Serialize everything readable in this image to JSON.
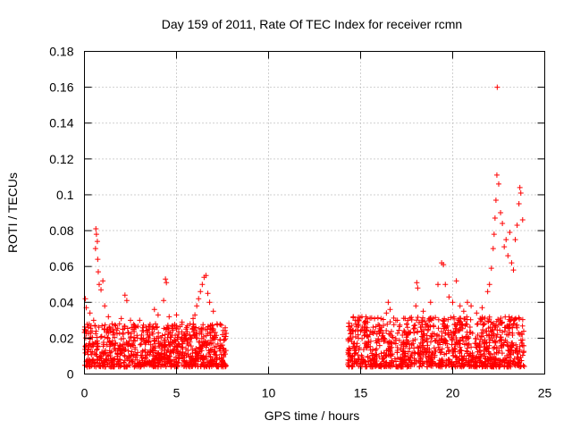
{
  "chart_data": {
    "type": "scatter",
    "title": "Day 159 of 2011, Rate Of TEC Index for receiver rcmn",
    "xlabel": "GPS time / hours",
    "ylabel": "ROTI / TECUs",
    "xlim": [
      0,
      25
    ],
    "ylim": [
      0,
      0.18
    ],
    "xticks": [
      "0",
      "5",
      "10",
      "15",
      "20",
      "25"
    ],
    "yticks": [
      "0",
      "0.02",
      "0.04",
      "0.06",
      "0.08",
      "0.1",
      "0.12",
      "0.14",
      "0.16",
      "0.18"
    ],
    "grid": true,
    "marker": "plus",
    "color": "#ff0000",
    "series": [
      {
        "points": [
          [
            0.05,
            0.042
          ],
          [
            0.1,
            0.037
          ],
          [
            0.2,
            0.026
          ],
          [
            0.3,
            0.034
          ],
          [
            0.5,
            0.03
          ],
          [
            0.6,
            0.07
          ],
          [
            0.62,
            0.081
          ],
          [
            0.65,
            0.078
          ],
          [
            0.7,
            0.074
          ],
          [
            0.72,
            0.064
          ],
          [
            0.75,
            0.057
          ],
          [
            0.8,
            0.05
          ],
          [
            0.9,
            0.047
          ],
          [
            1.0,
            0.052
          ],
          [
            1.1,
            0.038
          ],
          [
            1.3,
            0.032
          ],
          [
            1.5,
            0.028
          ],
          [
            1.7,
            0.027
          ],
          [
            2.0,
            0.031
          ],
          [
            2.2,
            0.044
          ],
          [
            2.3,
            0.041
          ],
          [
            2.5,
            0.03
          ],
          [
            2.8,
            0.026
          ],
          [
            3.0,
            0.03
          ],
          [
            3.2,
            0.024
          ],
          [
            3.5,
            0.025
          ],
          [
            3.8,
            0.036
          ],
          [
            4.0,
            0.033
          ],
          [
            4.3,
            0.041
          ],
          [
            4.4,
            0.053
          ],
          [
            4.45,
            0.051
          ],
          [
            4.6,
            0.032
          ],
          [
            5.0,
            0.033
          ],
          [
            5.3,
            0.029
          ],
          [
            5.6,
            0.027
          ],
          [
            5.9,
            0.031
          ],
          [
            6.0,
            0.033
          ],
          [
            6.1,
            0.038
          ],
          [
            6.2,
            0.042
          ],
          [
            6.3,
            0.046
          ],
          [
            6.4,
            0.05
          ],
          [
            6.5,
            0.054
          ],
          [
            6.6,
            0.055
          ],
          [
            6.7,
            0.045
          ],
          [
            6.8,
            0.04
          ],
          [
            7.0,
            0.035
          ],
          [
            7.2,
            0.028
          ],
          [
            7.5,
            0.022
          ],
          [
            14.4,
            0.02
          ],
          [
            14.6,
            0.032
          ],
          [
            14.7,
            0.03
          ],
          [
            15.0,
            0.024
          ],
          [
            15.5,
            0.022
          ],
          [
            16.0,
            0.024
          ],
          [
            16.4,
            0.034
          ],
          [
            16.5,
            0.04
          ],
          [
            16.6,
            0.036
          ],
          [
            17.0,
            0.03
          ],
          [
            17.5,
            0.028
          ],
          [
            18.0,
            0.038
          ],
          [
            18.05,
            0.051
          ],
          [
            18.1,
            0.048
          ],
          [
            18.4,
            0.035
          ],
          [
            18.8,
            0.04
          ],
          [
            19.2,
            0.05
          ],
          [
            19.4,
            0.062
          ],
          [
            19.5,
            0.061
          ],
          [
            19.6,
            0.05
          ],
          [
            19.8,
            0.043
          ],
          [
            20.0,
            0.04
          ],
          [
            20.2,
            0.052
          ],
          [
            20.4,
            0.038
          ],
          [
            20.6,
            0.035
          ],
          [
            20.8,
            0.04
          ],
          [
            21.0,
            0.038
          ],
          [
            21.3,
            0.034
          ],
          [
            21.6,
            0.037
          ],
          [
            21.9,
            0.046
          ],
          [
            22.0,
            0.05
          ],
          [
            22.1,
            0.059
          ],
          [
            22.2,
            0.07
          ],
          [
            22.25,
            0.078
          ],
          [
            22.3,
            0.087
          ],
          [
            22.35,
            0.097
          ],
          [
            22.4,
            0.111
          ],
          [
            22.42,
            0.16
          ],
          [
            22.5,
            0.106
          ],
          [
            22.6,
            0.09
          ],
          [
            22.7,
            0.084
          ],
          [
            22.8,
            0.071
          ],
          [
            22.9,
            0.075
          ],
          [
            23.0,
            0.066
          ],
          [
            23.1,
            0.079
          ],
          [
            23.2,
            0.062
          ],
          [
            23.3,
            0.058
          ],
          [
            23.4,
            0.075
          ],
          [
            23.5,
            0.083
          ],
          [
            23.6,
            0.095
          ],
          [
            23.65,
            0.104
          ],
          [
            23.7,
            0.101
          ],
          [
            23.8,
            0.086
          ]
        ]
      }
    ],
    "dense_bands": [
      {
        "x_range": [
          0,
          7.7
        ],
        "y_range": [
          0.004,
          0.028
        ]
      },
      {
        "x_range": [
          14.3,
          23.9
        ],
        "y_range": [
          0.004,
          0.032
        ]
      }
    ]
  }
}
